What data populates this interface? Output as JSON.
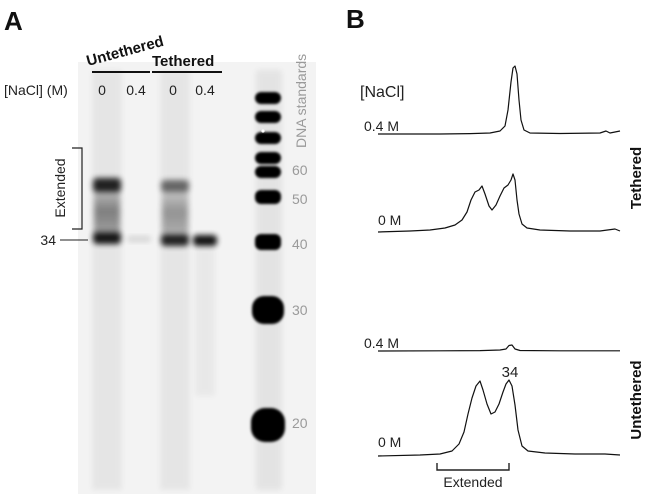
{
  "panel_a": {
    "letter": "A",
    "groups": {
      "untethered": "Untethered",
      "tethered": "Tethered"
    },
    "nacl_label": "[NaCl] (M)",
    "lane_concs": [
      "0",
      "0.4",
      "0",
      "0.4"
    ],
    "extended_label": "Extended",
    "band_label": "34",
    "standards_label": "DNA standards",
    "standards": [
      "60",
      "50",
      "40",
      "30",
      "20"
    ]
  },
  "panel_b": {
    "letter": "B",
    "nacl_label": "[NaCl]",
    "traces": [
      {
        "conc": "0.4 M",
        "group": "Tethered"
      },
      {
        "conc": "0 M",
        "group": "Tethered"
      },
      {
        "conc": "0.4 M",
        "group": "Untethered"
      },
      {
        "conc": "0 M",
        "group": "Untethered"
      }
    ],
    "group_labels": {
      "tethered": "Tethered",
      "untethered": "Untethered"
    },
    "peak_label": "34",
    "extended_label": "Extended"
  },
  "colors": {
    "gel_dark": "#000000",
    "gel_bg": "#f4f4f4",
    "trace": "#111111",
    "standards_text": "#9a9a9a"
  }
}
